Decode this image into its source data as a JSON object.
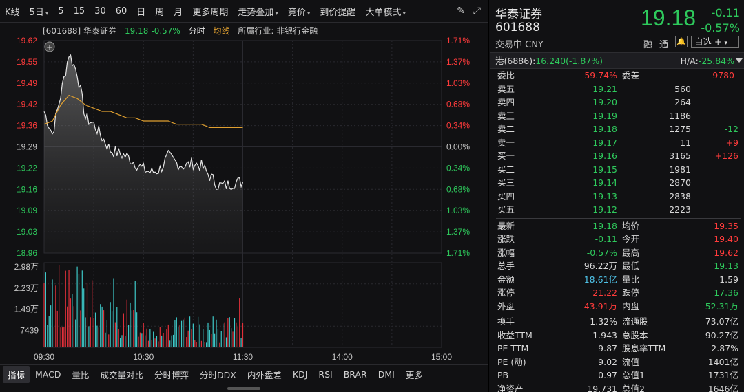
{
  "toolbar": {
    "items": [
      "K线",
      "5日",
      "5",
      "15",
      "30",
      "60",
      "日",
      "周",
      "月",
      "更多周期",
      "走势叠加",
      "竞价",
      "到价提醒",
      "大单模式"
    ],
    "dropdowns": [
      false,
      true,
      false,
      false,
      false,
      false,
      false,
      false,
      false,
      false,
      true,
      true,
      false,
      true
    ],
    "icons": [
      "pen-icon",
      "expand-icon"
    ]
  },
  "chart": {
    "info": {
      "code": "[601688]",
      "name": "华泰证券",
      "price": "19.18",
      "pct": "-0.57%",
      "mode": "分时",
      "avg_label": "均线",
      "industry": "所属行业: 非银行金融"
    },
    "price_axis": [
      "19.62",
      "19.55",
      "19.49",
      "19.42",
      "19.36",
      "19.29",
      "19.22",
      "19.16",
      "19.09",
      "19.03",
      "18.96"
    ],
    "pct_axis": [
      "1.71%",
      "1.37%",
      "1.03%",
      "0.68%",
      "0.34%",
      "0.00%",
      "0.34%",
      "0.68%",
      "1.03%",
      "1.37%",
      "1.71%"
    ],
    "vol_axis": [
      "2.98万",
      "2.23万",
      "1.49万",
      "7439"
    ],
    "time_axis": [
      "09:30",
      "10:30",
      "11:30",
      "14:00",
      "15:00"
    ],
    "colors": {
      "up": "#ff3b3b",
      "down": "#2ec95c",
      "price_line": "#e6e6e6",
      "avg_line": "#e0a030",
      "vol_up": "#e0303a",
      "vol_down": "#3ec8c8",
      "grid": "#2a2a30"
    }
  },
  "chart_data": {
    "type": "line",
    "title": "华泰证券 601688 分时",
    "prev_close": 19.29,
    "ylim": [
      18.96,
      19.62
    ],
    "xlabel": "",
    "ylabel": "",
    "x": [
      "09:30",
      "09:35",
      "09:40",
      "09:45",
      "09:50",
      "09:55",
      "10:00",
      "10:05",
      "10:10",
      "10:15",
      "10:20",
      "10:25",
      "10:30",
      "10:35",
      "10:40",
      "10:45",
      "10:50",
      "10:55",
      "11:00",
      "11:05",
      "11:10",
      "11:15",
      "11:20",
      "11:25",
      "11:30"
    ],
    "series": [
      {
        "values": [
          19.4,
          19.33,
          19.45,
          19.58,
          19.52,
          19.38,
          19.36,
          19.32,
          19.28,
          19.27,
          19.26,
          19.24,
          19.22,
          19.21,
          19.22,
          19.26,
          19.24,
          19.23,
          19.24,
          19.23,
          19.2,
          19.17,
          19.17,
          19.18,
          19.18
        ]
      },
      {
        "values": [
          19.36,
          19.37,
          19.42,
          19.45,
          19.44,
          19.42,
          19.41,
          19.4,
          19.4,
          19.39,
          19.38,
          19.38,
          19.37,
          19.37,
          19.37,
          19.37,
          19.36,
          19.36,
          19.36,
          19.36,
          19.35,
          19.35,
          19.35,
          19.35,
          19.35
        ]
      }
    ]
  },
  "panel": {
    "name": "华泰证券",
    "code": "601688",
    "status": "交易中 CNY",
    "price": "19.18",
    "chg": "-0.11",
    "pct": "-0.57%",
    "rong": "融",
    "tong": "通",
    "zixuan": "自选 +",
    "hk_label": "港(6886):",
    "hk_value": "16.240(-1.87%)",
    "ha_label": "H/A:",
    "ha_value": "-25.84%",
    "weibi": {
      "label": "委比",
      "value": "59.74%",
      "label2": "委差",
      "value2": "9780"
    },
    "asks": [
      {
        "label": "卖五",
        "price": "19.21",
        "vol": "560",
        "chg": ""
      },
      {
        "label": "卖四",
        "price": "19.20",
        "vol": "264",
        "chg": ""
      },
      {
        "label": "卖三",
        "price": "19.19",
        "vol": "1186",
        "chg": ""
      },
      {
        "label": "卖二",
        "price": "19.18",
        "vol": "1275",
        "chg": "-12"
      },
      {
        "label": "卖一",
        "price": "19.17",
        "vol": "11",
        "chg": "+9"
      }
    ],
    "bids": [
      {
        "label": "买一",
        "price": "19.16",
        "vol": "3165",
        "chg": "+126"
      },
      {
        "label": "买二",
        "price": "19.15",
        "vol": "1981",
        "chg": ""
      },
      {
        "label": "买三",
        "price": "19.14",
        "vol": "2870",
        "chg": ""
      },
      {
        "label": "买四",
        "price": "19.13",
        "vol": "2838",
        "chg": ""
      },
      {
        "label": "买五",
        "price": "19.12",
        "vol": "2223",
        "chg": ""
      }
    ],
    "stats": [
      {
        "l1": "最新",
        "v1": "19.18",
        "c1": "green",
        "l2": "均价",
        "v2": "19.35",
        "c2": "red"
      },
      {
        "l1": "涨跌",
        "v1": "-0.11",
        "c1": "green",
        "l2": "今开",
        "v2": "19.40",
        "c2": "red"
      },
      {
        "l1": "涨幅",
        "v1": "-0.57%",
        "c1": "green",
        "l2": "最高",
        "v2": "19.62",
        "c2": "red"
      },
      {
        "l1": "总手",
        "v1": "96.22万",
        "c1": "white",
        "l2": "最低",
        "v2": "19.13",
        "c2": "green"
      },
      {
        "l1": "金额",
        "v1": "18.61亿",
        "c1": "cyan",
        "l2": "量比",
        "v2": "1.59",
        "c2": "white"
      },
      {
        "l1": "涨停",
        "v1": "21.22",
        "c1": "red",
        "l2": "跌停",
        "v2": "17.36",
        "c2": "green"
      },
      {
        "l1": "外盘",
        "v1": "43.91万",
        "c1": "red",
        "l2": "内盘",
        "v2": "52.31万",
        "c2": "green"
      }
    ],
    "fundamentals": [
      {
        "l1": "换手",
        "v1": "1.32%",
        "l2": "流通股",
        "v2": "73.07亿"
      },
      {
        "l1": "收益TTM",
        "v1": "1.943",
        "l2": "总股本",
        "v2": "90.27亿"
      },
      {
        "l1": "PE TTM",
        "v1": "9.87",
        "l2": "股息率TTM",
        "v2": "2.87%"
      },
      {
        "l1": "PE (动)",
        "v1": "9.02",
        "l2": "流值",
        "v2": "1401亿"
      },
      {
        "l1": "PB",
        "v1": "0.97",
        "l2": "总值1",
        "v2": "1731亿"
      },
      {
        "l1": "净资产",
        "v1": "19.731",
        "l2": "总值2",
        "v2": "1646亿"
      }
    ]
  },
  "bottom_tabs": [
    "指标",
    "MACD",
    "量比",
    "成交量对比",
    "分时博弈",
    "分时DDX",
    "内外盘差",
    "KDJ",
    "RSI",
    "BRAR",
    "DMI",
    "更多"
  ]
}
